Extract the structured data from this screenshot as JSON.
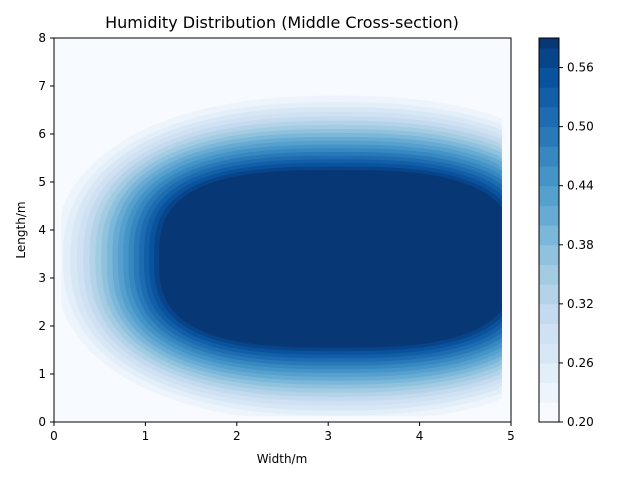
{
  "chart_data": {
    "type": "filled_contour",
    "title": "Humidity Distribution (Middle Cross-section)",
    "xlabel": "Width/m",
    "ylabel": "Length/m",
    "xlim": [
      0,
      5
    ],
    "ylim": [
      0,
      8
    ],
    "x_ticks": [
      "0",
      "1",
      "2",
      "3",
      "4",
      "5"
    ],
    "y_ticks": [
      "0",
      "1",
      "2",
      "3",
      "4",
      "5",
      "6",
      "7",
      "8"
    ],
    "colormap": "Blues",
    "colorbar": {
      "range": [
        0.2,
        0.59
      ],
      "tick_values": [
        0.2,
        0.26,
        0.32,
        0.38,
        0.44,
        0.5,
        0.56
      ],
      "tick_labels": [
        "0.20",
        "0.26",
        "0.32",
        "0.38",
        "0.44",
        "0.50",
        "0.56"
      ],
      "level_step": 0.02
    },
    "field": {
      "description_values": {
        "background": 0.2,
        "core_max": 0.59
      },
      "core_center": [
        3.1,
        3.4
      ],
      "core_semi_axes": [
        1.95,
        1.85
      ],
      "outer_semi_axes": [
        3.1,
        3.4
      ],
      "plateau_extent": [
        1.9,
        1.85
      ],
      "x_cut": 4.9
    },
    "colors": {
      "light": "#f7fbff",
      "dark": "#08306b",
      "axis": "#000000"
    }
  }
}
